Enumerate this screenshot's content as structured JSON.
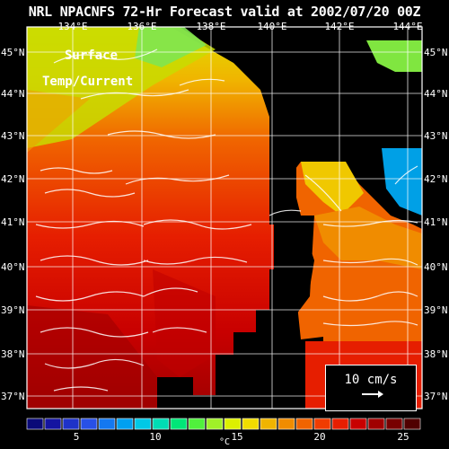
{
  "title": "NRL NPACNFS 72-Hr Forecast valid at 2002/07/20 00Z",
  "caption_line1": "Surface",
  "caption_line2": "Temp/Current",
  "scale_label": "10 cm/s",
  "lon_labels": [
    "134°E",
    "136°E",
    "138°E",
    "140°E",
    "142°E",
    "144°E"
  ],
  "lat_labels_left": [
    "45°N",
    "44°N",
    "43°N",
    "42°N",
    "41°N",
    "40°N",
    "39°N",
    "38°N",
    "37°N"
  ],
  "lat_labels_right": [
    "45°N",
    "44°N",
    "43°N",
    "42°N",
    "41°N",
    "40°N",
    "39°N",
    "38°N",
    "37°N"
  ],
  "colorbar": {
    "ticks": [
      "5",
      "10",
      "15",
      "20",
      "25"
    ],
    "unit": "°C",
    "colors": [
      "#0a0a78",
      "#1414a0",
      "#1e32c8",
      "#2850e6",
      "#1478f0",
      "#00a0f0",
      "#00c8e6",
      "#00dcb4",
      "#00e678",
      "#50f03c",
      "#a0f028",
      "#dcf000",
      "#f0dc00",
      "#f0b400",
      "#f08c00",
      "#f06400",
      "#f03c00",
      "#e61e00",
      "#c80000",
      "#a00000",
      "#780000",
      "#500000"
    ]
  }
}
